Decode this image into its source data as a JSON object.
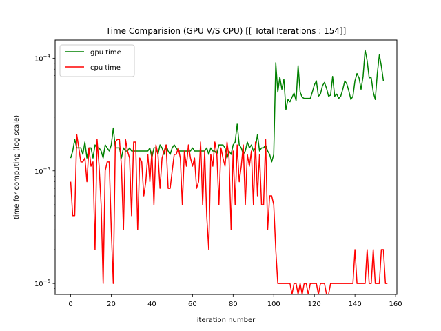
{
  "chart_data": {
    "type": "line",
    "title": "Time Comparision (GPU V/S CPU)  [[ Total Iterations : 154]]",
    "xlabel": "iteration number",
    "ylabel": "time for computing (log scale)",
    "yscale": "log",
    "xlim": [
      -7.65,
      160.65
    ],
    "ylim": [
      8e-07,
      0.000145
    ],
    "xticks": [
      0,
      20,
      40,
      60,
      80,
      100,
      120,
      140,
      160
    ],
    "xtick_labels": [
      "0",
      "20",
      "40",
      "60",
      "80",
      "100",
      "120",
      "140",
      "160"
    ],
    "yticks": [
      1e-06,
      1e-05,
      0.0001
    ],
    "ytick_labels": [
      {
        "base": "10",
        "exp": "−6"
      },
      {
        "base": "10",
        "exp": "−5"
      },
      {
        "base": "10",
        "exp": "−4"
      }
    ],
    "grid": false,
    "legend_position": "upper-left",
    "series": [
      {
        "name": "gpu time",
        "color": "#008000",
        "values": [
          1.3e-05,
          1.5e-05,
          1.9e-05,
          1.6e-05,
          1.6e-05,
          1.6e-05,
          1.4e-05,
          1.8e-05,
          1.3e-05,
          1.6e-05,
          1.6e-05,
          1.3e-05,
          1.7e-05,
          1.6e-05,
          1.6e-05,
          1.5e-05,
          1.3e-05,
          1.7e-05,
          1.6e-05,
          1.5e-05,
          1.7e-05,
          2.4e-05,
          1.6e-05,
          1.6e-05,
          1.6e-05,
          1.3e-05,
          1.6e-05,
          1.5e-05,
          1.5e-05,
          1.6e-05,
          1.5e-05,
          1.5e-05,
          1.5e-05,
          1.5e-05,
          1.5e-05,
          1.5e-05,
          1.5e-05,
          1.5e-05,
          1.5e-05,
          1.6e-05,
          1.3e-05,
          1.6e-05,
          1.6e-05,
          1.4e-05,
          1.7e-05,
          1.6e-05,
          1.4e-05,
          1.7e-05,
          1.5e-05,
          1.4e-05,
          1.6e-05,
          1.7e-05,
          1.6e-05,
          1.5e-05,
          1.5e-05,
          1.5e-05,
          1.5e-05,
          1.5e-05,
          1.5e-05,
          1.5e-05,
          1.6e-05,
          1.5e-05,
          1.5e-05,
          1.5e-05,
          1.5e-05,
          1.5e-05,
          1.5e-05,
          1.6e-05,
          1.4e-05,
          1.6e-05,
          1.5e-05,
          1.5e-05,
          1.4e-05,
          1.7e-05,
          1.7e-05,
          1.7e-05,
          1.6e-05,
          1.3e-05,
          1.5e-05,
          1.4e-05,
          1.7e-05,
          1.8e-05,
          2.6e-05,
          1.7e-05,
          1.6e-05,
          1.4e-05,
          1.5e-05,
          1.8e-05,
          1.6e-05,
          1.7e-05,
          1.5e-05,
          1.6e-05,
          2.1e-05,
          1.5e-05,
          1.6e-05,
          1.6e-05,
          1.7e-05,
          1.5e-05,
          1.4e-05,
          1.2e-05,
          1.4e-05,
          9.1e-05,
          5e-05,
          6.8e-05,
          5.3e-05,
          6.5e-05,
          3.5e-05,
          4.3e-05,
          4.1e-05,
          4.5e-05,
          4.9e-05,
          4.2e-05,
          8.6e-05,
          5e-05,
          4.5e-05,
          4.4e-05,
          4.4e-05,
          4.4e-05,
          4.4e-05,
          5e-05,
          5.8e-05,
          6.3e-05,
          4.6e-05,
          4.8e-05,
          5.7e-05,
          6.1e-05,
          5.4e-05,
          4.6e-05,
          4.7e-05,
          6.9e-05,
          4.6e-05,
          4.8e-05,
          4.4e-05,
          4.6e-05,
          5.3e-05,
          6.3e-05,
          5.9e-05,
          5.1e-05,
          4.3e-05,
          4.6e-05,
          6.3e-05,
          7.3e-05,
          6.7e-05,
          5.3e-05,
          6.9e-05,
          0.000118,
          9.5e-05,
          6.7e-05,
          6.7e-05,
          5e-05,
          4.3e-05,
          7.3e-05,
          0.000107,
          8.5e-05,
          6.3e-05
        ]
      },
      {
        "name": "cpu time",
        "color": "#ff0000",
        "values": [
          8e-06,
          4e-06,
          4e-06,
          2.1e-05,
          1.6e-05,
          1.2e-05,
          1.2e-05,
          1.3e-05,
          8e-06,
          1.6e-05,
          1.1e-05,
          1.2e-05,
          2e-06,
          1.9e-05,
          1.1e-05,
          5e-06,
          1e-06,
          1e-05,
          1.2e-05,
          1.2e-05,
          3e-06,
          1e-06,
          1.8e-05,
          1.9e-05,
          1.9e-05,
          1.1e-05,
          3e-06,
          1.9e-05,
          1.5e-05,
          1.3e-05,
          4e-06,
          1.8e-05,
          1.8e-05,
          3e-06,
          1.3e-05,
          1.2e-05,
          6e-06,
          8e-06,
          1.4e-05,
          8e-06,
          1.5e-05,
          5e-06,
          1.7e-05,
          1.4e-05,
          7e-06,
          1.3e-05,
          1.5e-05,
          1.7e-05,
          7e-06,
          7e-06,
          1e-05,
          1.4e-05,
          1.4e-05,
          1.6e-05,
          1.3e-05,
          5e-06,
          1.5e-05,
          1.1e-05,
          1.7e-05,
          1.3e-05,
          1.1e-05,
          1.3e-05,
          7e-06,
          8e-06,
          1.8e-05,
          5e-06,
          1.5e-05,
          4e-06,
          2e-06,
          1.4e-05,
          1.1e-05,
          1.8e-05,
          1.4e-05,
          5e-06,
          1.6e-05,
          1.3e-05,
          1.1e-05,
          1.8e-05,
          1.3e-05,
          3e-06,
          1.5e-05,
          5e-06,
          1.7e-05,
          8e-06,
          1.1e-05,
          1.7e-05,
          5e-06,
          1.4e-05,
          1.1e-05,
          1.5e-05,
          5e-06,
          1.8e-05,
          6e-06,
          1.4e-05,
          5e-06,
          5e-06,
          1.9e-05,
          3e-06,
          6e-06,
          6e-06,
          5e-06,
          2e-06,
          1e-06,
          1e-06,
          1e-06,
          1e-06,
          1e-06,
          1e-06,
          1e-06,
          8e-07,
          1e-06,
          1e-06,
          8e-07,
          1e-06,
          8e-07,
          1e-06,
          1e-06,
          8e-07,
          1e-06,
          1e-06,
          1e-06,
          1e-06,
          8e-07,
          1e-06,
          1e-06,
          1e-06,
          8e-07,
          8e-07,
          1e-06,
          1e-06,
          1e-06,
          1e-06,
          1e-06,
          1e-06,
          1e-06,
          1e-06,
          1e-06,
          1e-06,
          1e-06,
          1e-06,
          2e-06,
          1e-06,
          1e-06,
          1e-06,
          1e-06,
          1e-06,
          2e-06,
          1e-06,
          1e-06,
          2e-06,
          1e-06,
          1e-06,
          1e-06,
          2e-06,
          2e-06,
          1e-06,
          1e-06
        ]
      }
    ]
  }
}
